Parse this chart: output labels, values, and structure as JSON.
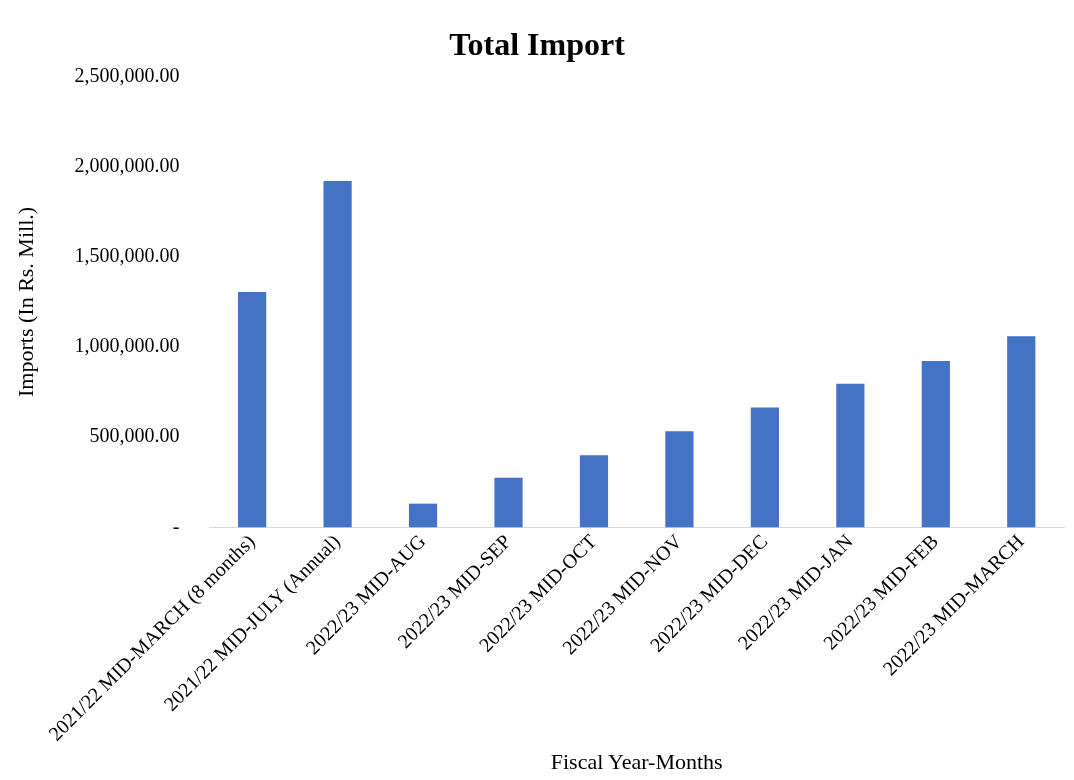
{
  "chart_data": {
    "type": "bar",
    "title": "Total Import",
    "xlabel": "Fiscal Year-Months",
    "ylabel": "Imports (In Rs. Mill.)",
    "categories": [
      "2021/22 MID-MARCH (8 months)",
      "2021/22 MID-JULY (Annual)",
      "2022/23 MID-AUG",
      "2022/23 MID-SEP",
      "2022/23 MID-OCT",
      "2022/23 MID-NOV",
      "2022/23 MID-DEC",
      "2022/23 MID-JAN",
      "2022/23 MID-FEB",
      "2022/23 MID-MARCH"
    ],
    "values": [
      1305000,
      1920000,
      132000,
      275000,
      400000,
      533000,
      665000,
      797000,
      923000,
      1060000
    ],
    "color": "#4472c4",
    "ylim": [
      0,
      2500000
    ],
    "yticks": [
      {
        "value": 0,
        "label": "-"
      },
      {
        "value": 500000,
        "label": "500,000.00"
      },
      {
        "value": 1000000,
        "label": "1,000,000.00"
      },
      {
        "value": 1500000,
        "label": "1,500,000.00"
      },
      {
        "value": 2000000,
        "label": "2,000,000.00"
      },
      {
        "value": 2500000,
        "label": "2,500,000.00"
      }
    ],
    "grid": false,
    "legend": false
  }
}
